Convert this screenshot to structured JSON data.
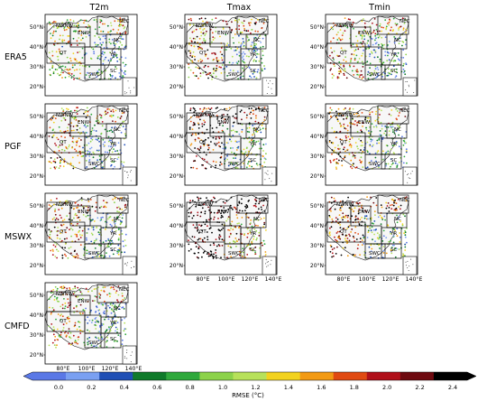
{
  "columns": [
    "T2m",
    "Tmax",
    "Tmin"
  ],
  "rows": [
    "ERA5",
    "PGF",
    "MSWX",
    "CMFD"
  ],
  "panels": [
    {
      "row": "ERA5",
      "col": "T2m"
    },
    {
      "row": "ERA5",
      "col": "Tmax"
    },
    {
      "row": "ERA5",
      "col": "Tmin"
    },
    {
      "row": "PGF",
      "col": "T2m"
    },
    {
      "row": "PGF",
      "col": "Tmax"
    },
    {
      "row": "PGF",
      "col": "Tmin"
    },
    {
      "row": "MSWX",
      "col": "T2m"
    },
    {
      "row": "MSWX",
      "col": "Tmax"
    },
    {
      "row": "MSWX",
      "col": "Tmin"
    },
    {
      "row": "CMFD",
      "col": "T2m"
    }
  ],
  "map": {
    "lat_labels": [
      "50°N",
      "40°N",
      "30°N",
      "20°N"
    ],
    "lon_labels": [
      "80°E",
      "100°E",
      "120°E",
      "140°E"
    ],
    "regions": [
      "NWNW",
      "ENW",
      "NEC",
      "NC",
      "QT",
      "YR",
      "SWC",
      "SC"
    ]
  },
  "colorbar": {
    "label": "RMSE (°C)",
    "ticks": [
      "0.0",
      "0.2",
      "0.4",
      "0.6",
      "0.8",
      "1.0",
      "1.2",
      "1.4",
      "1.6",
      "1.8",
      "2.0",
      "2.2",
      "2.4"
    ],
    "colors": [
      "#5a78e6",
      "#7aa0f2",
      "#1f4fb5",
      "#0f7a2a",
      "#2fa83c",
      "#8cd24a",
      "#b7e15a",
      "#f2d21f",
      "#f29a14",
      "#e04a12",
      "#b0101a",
      "#6e0a10",
      "#000000"
    ]
  }
}
